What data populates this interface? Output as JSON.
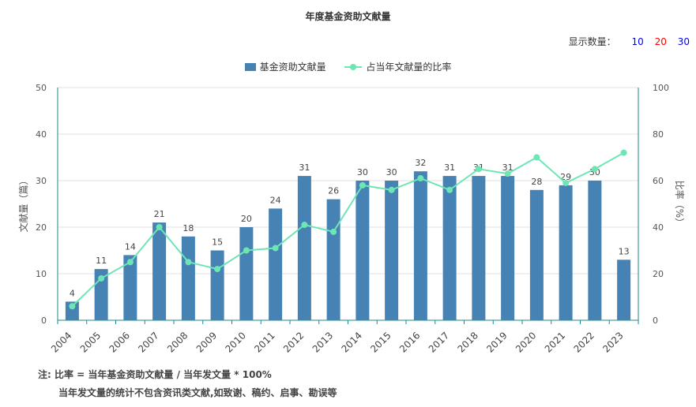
{
  "title": "年度基金资助文献量",
  "display_count": {
    "label": "显示数量：",
    "options": [
      {
        "value": "10",
        "color": "#0000ff"
      },
      {
        "value": "20",
        "color": "#ff0000"
      },
      {
        "value": "30",
        "color": "#0000ff"
      }
    ]
  },
  "notes": {
    "line1": "注:  比率 = 当年基金资助文献量 / 当年发文量 * 100%",
    "line2": "当年发文量的统计不包含资讯类文献,如致谢、稿约、启事、勘误等"
  },
  "chart_data": {
    "type": "bar",
    "categories": [
      "2004",
      "2005",
      "2006",
      "2007",
      "2008",
      "2009",
      "2010",
      "2011",
      "2012",
      "2013",
      "2014",
      "2015",
      "2016",
      "2017",
      "2018",
      "2019",
      "2020",
      "2021",
      "2022",
      "2023"
    ],
    "series": [
      {
        "name": "基金资助文献量",
        "type": "bar",
        "axis": "left",
        "color": "#4682b4",
        "values": [
          4,
          11,
          14,
          21,
          18,
          15,
          20,
          24,
          31,
          26,
          30,
          30,
          32,
          31,
          31,
          31,
          28,
          29,
          30,
          13
        ]
      },
      {
        "name": "占当年文献量的比率",
        "type": "line",
        "axis": "right",
        "color": "#6ee6b4",
        "values": [
          6,
          18,
          25,
          40,
          25,
          22,
          30,
          31,
          41,
          38,
          58,
          56,
          61,
          56,
          65,
          63,
          70,
          59,
          65,
          72
        ]
      }
    ],
    "ylabel_left": "文献量（篇）",
    "ylabel_right": "比率（%）",
    "ylim_left": [
      0,
      50
    ],
    "ylim_right": [
      0,
      100
    ],
    "yticks_left": [
      "0",
      "10",
      "20",
      "30",
      "40",
      "50"
    ],
    "yticks_right": [
      "0",
      "20",
      "40",
      "60",
      "80",
      "100"
    ],
    "grid": true,
    "legend_position": "top-center"
  }
}
